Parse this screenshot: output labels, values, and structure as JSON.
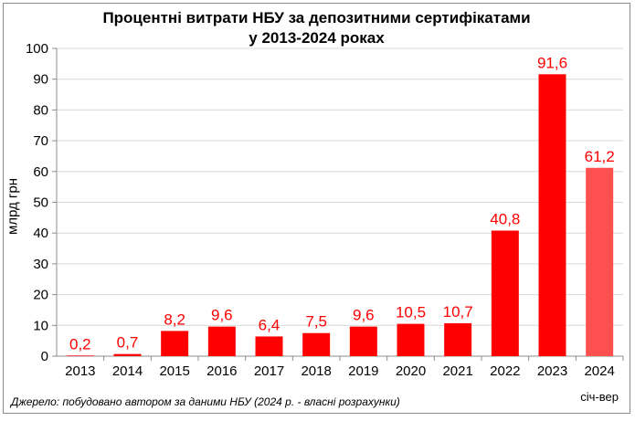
{
  "chart_data": {
    "type": "bar",
    "title": "Процентні витрати НБУ за депозитними сертифікатами",
    "subtitle": "у 2013-2024 роках",
    "ylabel": "млрд грн",
    "xlabel": "",
    "categories": [
      "2013",
      "2014",
      "2015",
      "2016",
      "2017",
      "2018",
      "2019",
      "2020",
      "2021",
      "2022",
      "2023",
      "2024"
    ],
    "values": [
      0.2,
      0.7,
      8.2,
      9.6,
      6.4,
      7.5,
      9.6,
      10.5,
      10.7,
      40.8,
      91.6,
      61.2
    ],
    "value_labels": [
      "0,2",
      "0,7",
      "8,2",
      "9,6",
      "6,4",
      "7,5",
      "9,6",
      "10,5",
      "10,7",
      "40,8",
      "91,6",
      "61,2"
    ],
    "ylim": [
      0,
      100
    ],
    "yticks": [
      0,
      10,
      20,
      30,
      40,
      50,
      60,
      70,
      80,
      90,
      100
    ],
    "grid": true,
    "legend": "none",
    "colors": {
      "bar": "#ff0000",
      "bar_last": "#ff5050",
      "label": "#ff0000",
      "grid": "#d9d9d9",
      "axis": "#8c8c8c"
    }
  },
  "notes": {
    "source": "Джерело: побудовано автором за даними НБУ (2024 р. - власні розрахунки)",
    "period": "січ-вер"
  }
}
